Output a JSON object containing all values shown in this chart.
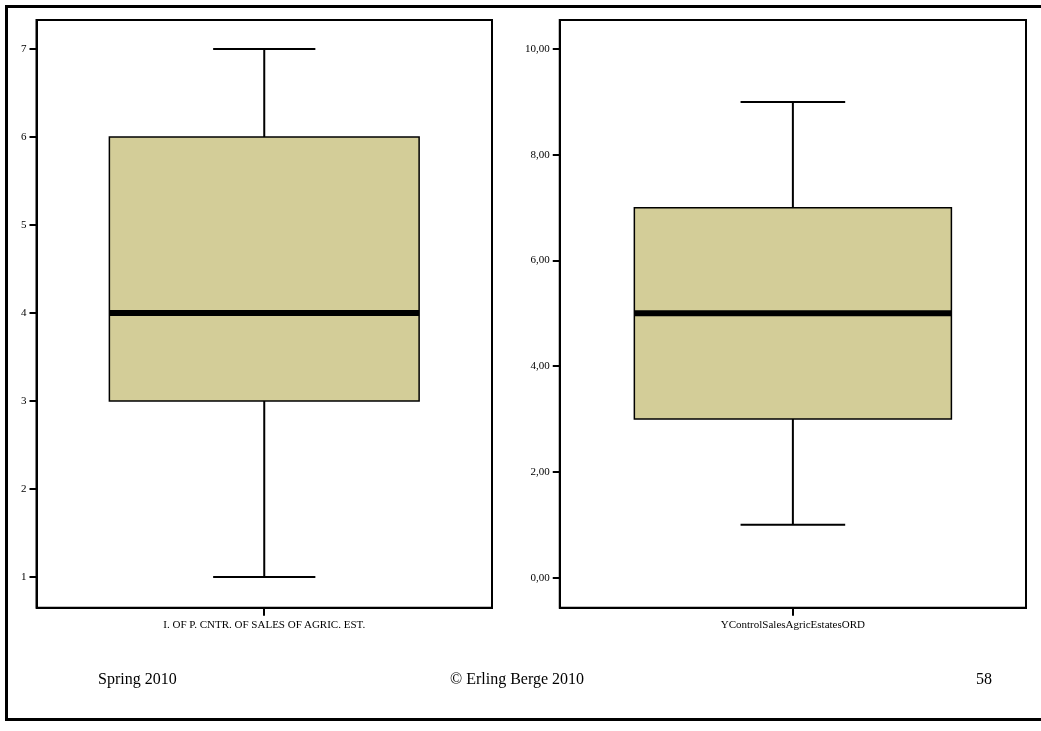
{
  "chart_data": [
    {
      "type": "box",
      "categories": [
        "I. OF P. CNTR. OF SALES OF AGRIC. EST."
      ],
      "color": "#d3cd98",
      "boxes": [
        {
          "low": 1,
          "q1": 3,
          "median": 4,
          "q3": 6,
          "high": 7
        }
      ],
      "ylim": [
        0.65,
        7.33
      ],
      "yticks": [
        1,
        2,
        3,
        4,
        5,
        6,
        7
      ],
      "grid": false,
      "annotations": [
        "Spring 2010",
        "© Erling Berge 2010",
        "58"
      ]
    },
    {
      "type": "box",
      "categories": [
        "YControlSalesAgricEstatesORD"
      ],
      "color": "#d3cd98",
      "boxes": [
        {
          "low": 1,
          "q1": 3,
          "median": 5,
          "q3": 7,
          "high": 9
        }
      ],
      "ylim": [
        -0.57,
        10.55
      ],
      "yticks": [
        {
          "value": 0,
          "label": "0,00"
        },
        {
          "value": 2,
          "label": "2,00"
        },
        {
          "value": 4,
          "label": "4,00"
        },
        {
          "value": 6,
          "label": "6,00"
        },
        {
          "value": 8,
          "label": "8,00"
        },
        {
          "value": 10,
          "label": "10,00"
        }
      ],
      "grid": false
    }
  ]
}
